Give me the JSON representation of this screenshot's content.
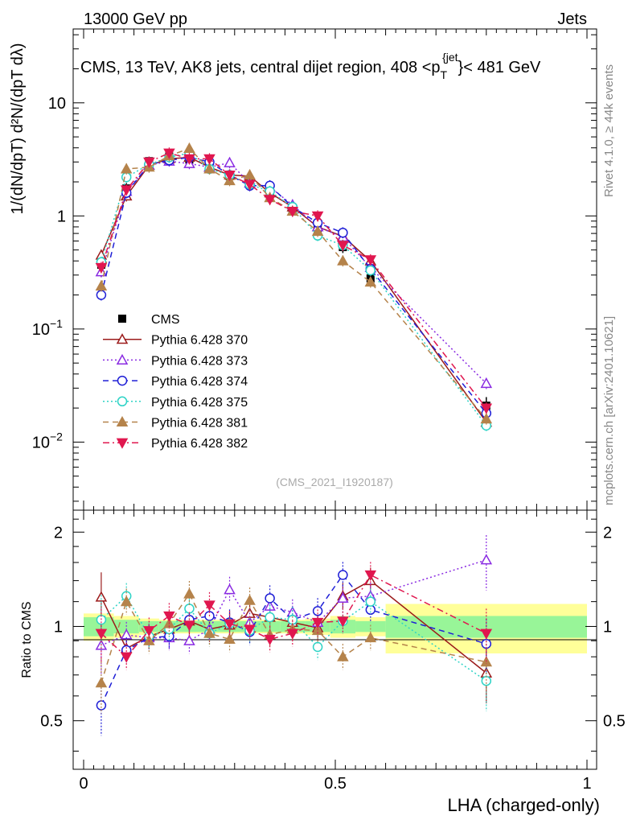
{
  "header": {
    "left": "13000 GeV pp",
    "right": "Jets"
  },
  "title": "CMS, 13 TeV, AK8 jets, central dijet region, 408 <p",
  "title_sub": "T",
  "title_sup": "{jet",
  "title_tail": "}< 481 GeV",
  "ylabel_main": "1/(dN/dpT) d²N/(dpT dλ)",
  "ylabel_ratio": "Ratio to CMS",
  "xlabel": "LHA (charged-only)",
  "right_label_top": "Rivet 4.1.0, ≥ 44k events",
  "right_label_bottom": "mcplots.cern.ch [arXiv:2401.10621]",
  "analysis_id": "(CMS_2021_I1920187)",
  "colors": {
    "data": "#000000",
    "p370": "#9b1b1b",
    "p373": "#8a2be2",
    "p374": "#1f1fd6",
    "p375": "#2ed3c6",
    "p381": "#b5834b",
    "p382": "#e0174f",
    "band_inner": "#98f598",
    "band_outer": "#ffff99"
  },
  "chart_data": [
    {
      "type": "line",
      "panel": "main",
      "yscale": "log",
      "xlim": [
        0,
        1
      ],
      "ylim": [
        0.0025,
        45
      ],
      "ytick_labels": [
        "10^-2",
        "10^-1",
        "1",
        "10"
      ],
      "x": [
        0.035,
        0.085,
        0.13,
        0.17,
        0.21,
        0.25,
        0.29,
        0.33,
        0.37,
        0.415,
        0.465,
        0.515,
        0.57,
        0.8
      ],
      "series": [
        {
          "name": "CMS",
          "style": "data",
          "values": [
            0.37,
            1.75,
            3.05,
            3.35,
            3.15,
            2.75,
            2.25,
            1.95,
            1.55,
            1.15,
            0.78,
            0.53,
            0.28,
            0.021
          ],
          "errors": [
            0.08,
            0.2,
            0.2,
            0.2,
            0.2,
            0.18,
            0.18,
            0.15,
            0.12,
            0.1,
            0.08,
            0.06,
            0.04,
            0.004
          ]
        },
        {
          "name": "Pythia 6.428 370",
          "style": "p370",
          "values": [
            0.45,
            1.5,
            2.8,
            3.2,
            3.3,
            2.7,
            2.3,
            2.25,
            1.6,
            1.2,
            0.8,
            0.66,
            0.4,
            0.015
          ]
        },
        {
          "name": "Pythia 6.428 373",
          "style": "p373",
          "values": [
            0.32,
            1.65,
            2.8,
            3.05,
            2.9,
            2.7,
            2.95,
            1.95,
            1.8,
            1.25,
            0.8,
            0.65,
            0.35,
            0.033
          ]
        },
        {
          "name": "Pythia 6.428 374",
          "style": "p374",
          "values": [
            0.2,
            1.6,
            2.85,
            3.1,
            3.3,
            3.0,
            2.3,
            1.85,
            1.85,
            1.2,
            0.87,
            0.71,
            0.34,
            0.018
          ]
        },
        {
          "name": "Pythia 6.428 375",
          "style": "p375",
          "values": [
            0.39,
            2.2,
            2.85,
            3.3,
            3.6,
            2.6,
            2.3,
            1.9,
            1.65,
            1.2,
            0.67,
            0.55,
            0.33,
            0.014
          ]
        },
        {
          "name": "Pythia 6.428 381",
          "style": "p381",
          "values": [
            0.24,
            2.6,
            2.7,
            3.4,
            3.95,
            2.6,
            2.05,
            2.3,
            1.45,
            1.1,
            0.73,
            0.4,
            0.26,
            0.016
          ]
        },
        {
          "name": "Pythia 6.428 382",
          "style": "p382",
          "values": [
            0.35,
            1.7,
            3.0,
            3.6,
            3.2,
            3.2,
            2.3,
            1.9,
            1.4,
            1.1,
            1.0,
            0.55,
            0.41,
            0.02
          ]
        }
      ]
    },
    {
      "type": "line",
      "panel": "ratio",
      "xlim": [
        0,
        1
      ],
      "ylim": [
        0.35,
        2.35
      ],
      "xtick_labels": [
        "0",
        "0.5",
        "1"
      ],
      "ytick_labels": [
        "0.5",
        "1",
        "2"
      ],
      "x": [
        0.035,
        0.085,
        0.13,
        0.17,
        0.21,
        0.25,
        0.29,
        0.33,
        0.37,
        0.415,
        0.465,
        0.515,
        0.57,
        0.8
      ],
      "bands": {
        "edges": [
          0,
          0.06,
          0.11,
          0.15,
          0.19,
          0.23,
          0.27,
          0.31,
          0.35,
          0.39,
          0.44,
          0.49,
          0.54,
          0.6,
          1.0
        ],
        "inner": [
          0.07,
          0.05,
          0.04,
          0.04,
          0.04,
          0.04,
          0.04,
          0.04,
          0.04,
          0.04,
          0.04,
          0.05,
          0.04,
          0.08
        ],
        "outer": [
          0.1,
          0.08,
          0.06,
          0.05,
          0.05,
          0.05,
          0.05,
          0.05,
          0.05,
          0.05,
          0.06,
          0.08,
          0.07,
          0.18
        ]
      },
      "series": [
        {
          "name": "Pythia 6.428 370",
          "style": "p370",
          "values": [
            1.24,
            0.85,
            0.93,
            0.98,
            1.04,
            0.98,
            1.01,
            1.1,
            1.07,
            1.03,
            0.99,
            1.25,
            1.4,
            0.71
          ]
        },
        {
          "name": "Pythia 6.428 373",
          "style": "p373",
          "values": [
            0.87,
            0.94,
            0.92,
            0.92,
            0.9,
            0.98,
            1.31,
            1.03,
            1.16,
            1.11,
            1.03,
            1.23,
            1.25,
            1.63
          ]
        },
        {
          "name": "Pythia 6.428 374",
          "style": "p374",
          "values": [
            0.56,
            0.84,
            0.92,
            0.93,
            1.05,
            1.08,
            1.03,
            0.96,
            1.23,
            1.05,
            1.12,
            1.46,
            1.13,
            0.88
          ]
        },
        {
          "name": "Pythia 6.428 375",
          "style": "p375",
          "values": [
            1.05,
            1.25,
            0.93,
            0.98,
            1.14,
            0.95,
            1.02,
            0.97,
            1.07,
            1.05,
            0.86,
            1.04,
            1.2,
            0.67
          ]
        },
        {
          "name": "Pythia 6.428 381",
          "style": "p381",
          "values": [
            0.66,
            1.2,
            0.9,
            1.02,
            1.27,
            0.95,
            0.91,
            1.21,
            0.94,
            0.98,
            0.97,
            0.8,
            0.92,
            0.77
          ]
        },
        {
          "name": "Pythia 6.428 382",
          "style": "p382",
          "values": [
            0.95,
            0.8,
            0.97,
            1.08,
            1.01,
            1.17,
            1.02,
            0.98,
            0.91,
            0.95,
            1.03,
            1.04,
            1.46,
            0.95
          ]
        }
      ]
    }
  ]
}
